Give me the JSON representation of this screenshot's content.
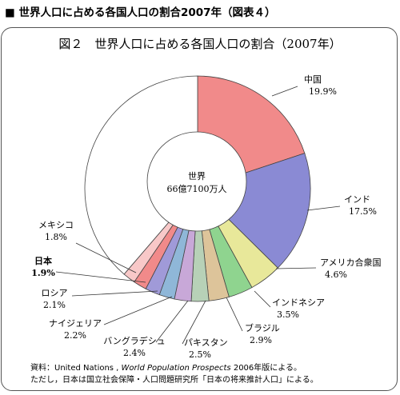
{
  "header": {
    "text": "■ 世界人口に占める各国人口の割合2007年（図表４）"
  },
  "chart_data": {
    "type": "pie",
    "title": "図２　世界人口に占める各国人口の割合（2007年）",
    "center_label": {
      "line1": "世界",
      "line2": "66億7100万人"
    },
    "slices": [
      {
        "name": "中国",
        "value": 19.9,
        "value_label": "19.9%",
        "color": "#f18a8a"
      },
      {
        "name": "インド",
        "value": 17.5,
        "value_label": "17.5%",
        "color": "#8a8ad4"
      },
      {
        "name": "アメリカ合衆国",
        "value": 4.6,
        "value_label": "4.6%",
        "color": "#e8e89a"
      },
      {
        "name": "インドネシア",
        "value": 3.5,
        "value_label": "3.5%",
        "color": "#8fd48f"
      },
      {
        "name": "ブラジル",
        "value": 2.9,
        "value_label": "2.9%",
        "color": "#ddc49a"
      },
      {
        "name": "パキスタン",
        "value": 2.5,
        "value_label": "2.5%",
        "color": "#b7d1b7"
      },
      {
        "name": "バングラデシュ",
        "value": 2.4,
        "value_label": "2.4%",
        "color": "#c8a8d8"
      },
      {
        "name": "ナイジェリア",
        "value": 2.2,
        "value_label": "2.2%",
        "color": "#8fb7d8"
      },
      {
        "name": "ロシア",
        "value": 2.1,
        "value_label": "2.1%",
        "color": "#a09ad8"
      },
      {
        "name": "日本",
        "value": 1.9,
        "value_label": "1.9%",
        "color": "#f18a8a",
        "bold": true
      },
      {
        "name": "メキシコ",
        "value": 1.8,
        "value_label": "1.8%",
        "color": "#f8c8c8"
      },
      {
        "name": "",
        "value": 38.7,
        "value_label": "",
        "color": "#ffffff"
      }
    ]
  },
  "source": {
    "line1_a": "資料：United Nations , ",
    "line1_italic": "World Population Prospects",
    "line1_b": "  2006年版による。",
    "line2": "ただし，日本は国立社会保障・人口問題研究所「日本の将来推計人口」による。"
  }
}
